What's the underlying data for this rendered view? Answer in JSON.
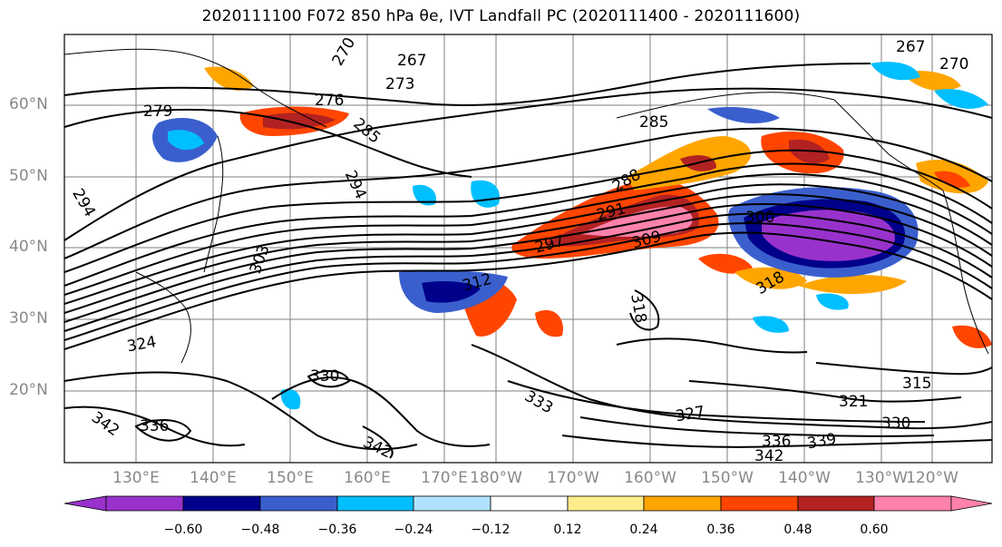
{
  "title": "2020111100 F072 850 hPa θe, IVT Landfall PC (2020111400 - 2020111600)",
  "map": {
    "lat_labels": [
      "60°N",
      "50°N",
      "40°N",
      "30°N",
      "20°N"
    ],
    "lon_labels": [
      "130°E",
      "140°E",
      "150°E",
      "160°E",
      "170°E",
      "180°W",
      "170°W",
      "160°W",
      "150°W",
      "140°W",
      "130°W",
      "120°W"
    ],
    "contour_labels": [
      "270",
      "267",
      "267",
      "270",
      "273",
      "279",
      "276",
      "285",
      "285",
      "288",
      "291",
      "294",
      "294",
      "297",
      "300",
      "303",
      "309",
      "312",
      "315",
      "318",
      "318",
      "321",
      "324",
      "327",
      "330",
      "330",
      "333",
      "336",
      "336",
      "339",
      "342",
      "342",
      "342"
    ],
    "shading": "IVT landfall principal component",
    "contour_field": "850 hPa theta-e"
  },
  "colorbar": {
    "colors": [
      "#9932cc",
      "#00008b",
      "#3a5fcd",
      "#00bfff",
      "#b0e2ff",
      "#ffffff",
      "#ffec8b",
      "#ffa500",
      "#ff4500",
      "#b22222",
      "#ff82ab"
    ],
    "tick_labels": [
      "−0.60",
      "−0.48",
      "−0.36",
      "−0.24",
      "−0.12",
      "0.12",
      "0.24",
      "0.36",
      "0.48",
      "0.60"
    ],
    "extend": "both"
  }
}
